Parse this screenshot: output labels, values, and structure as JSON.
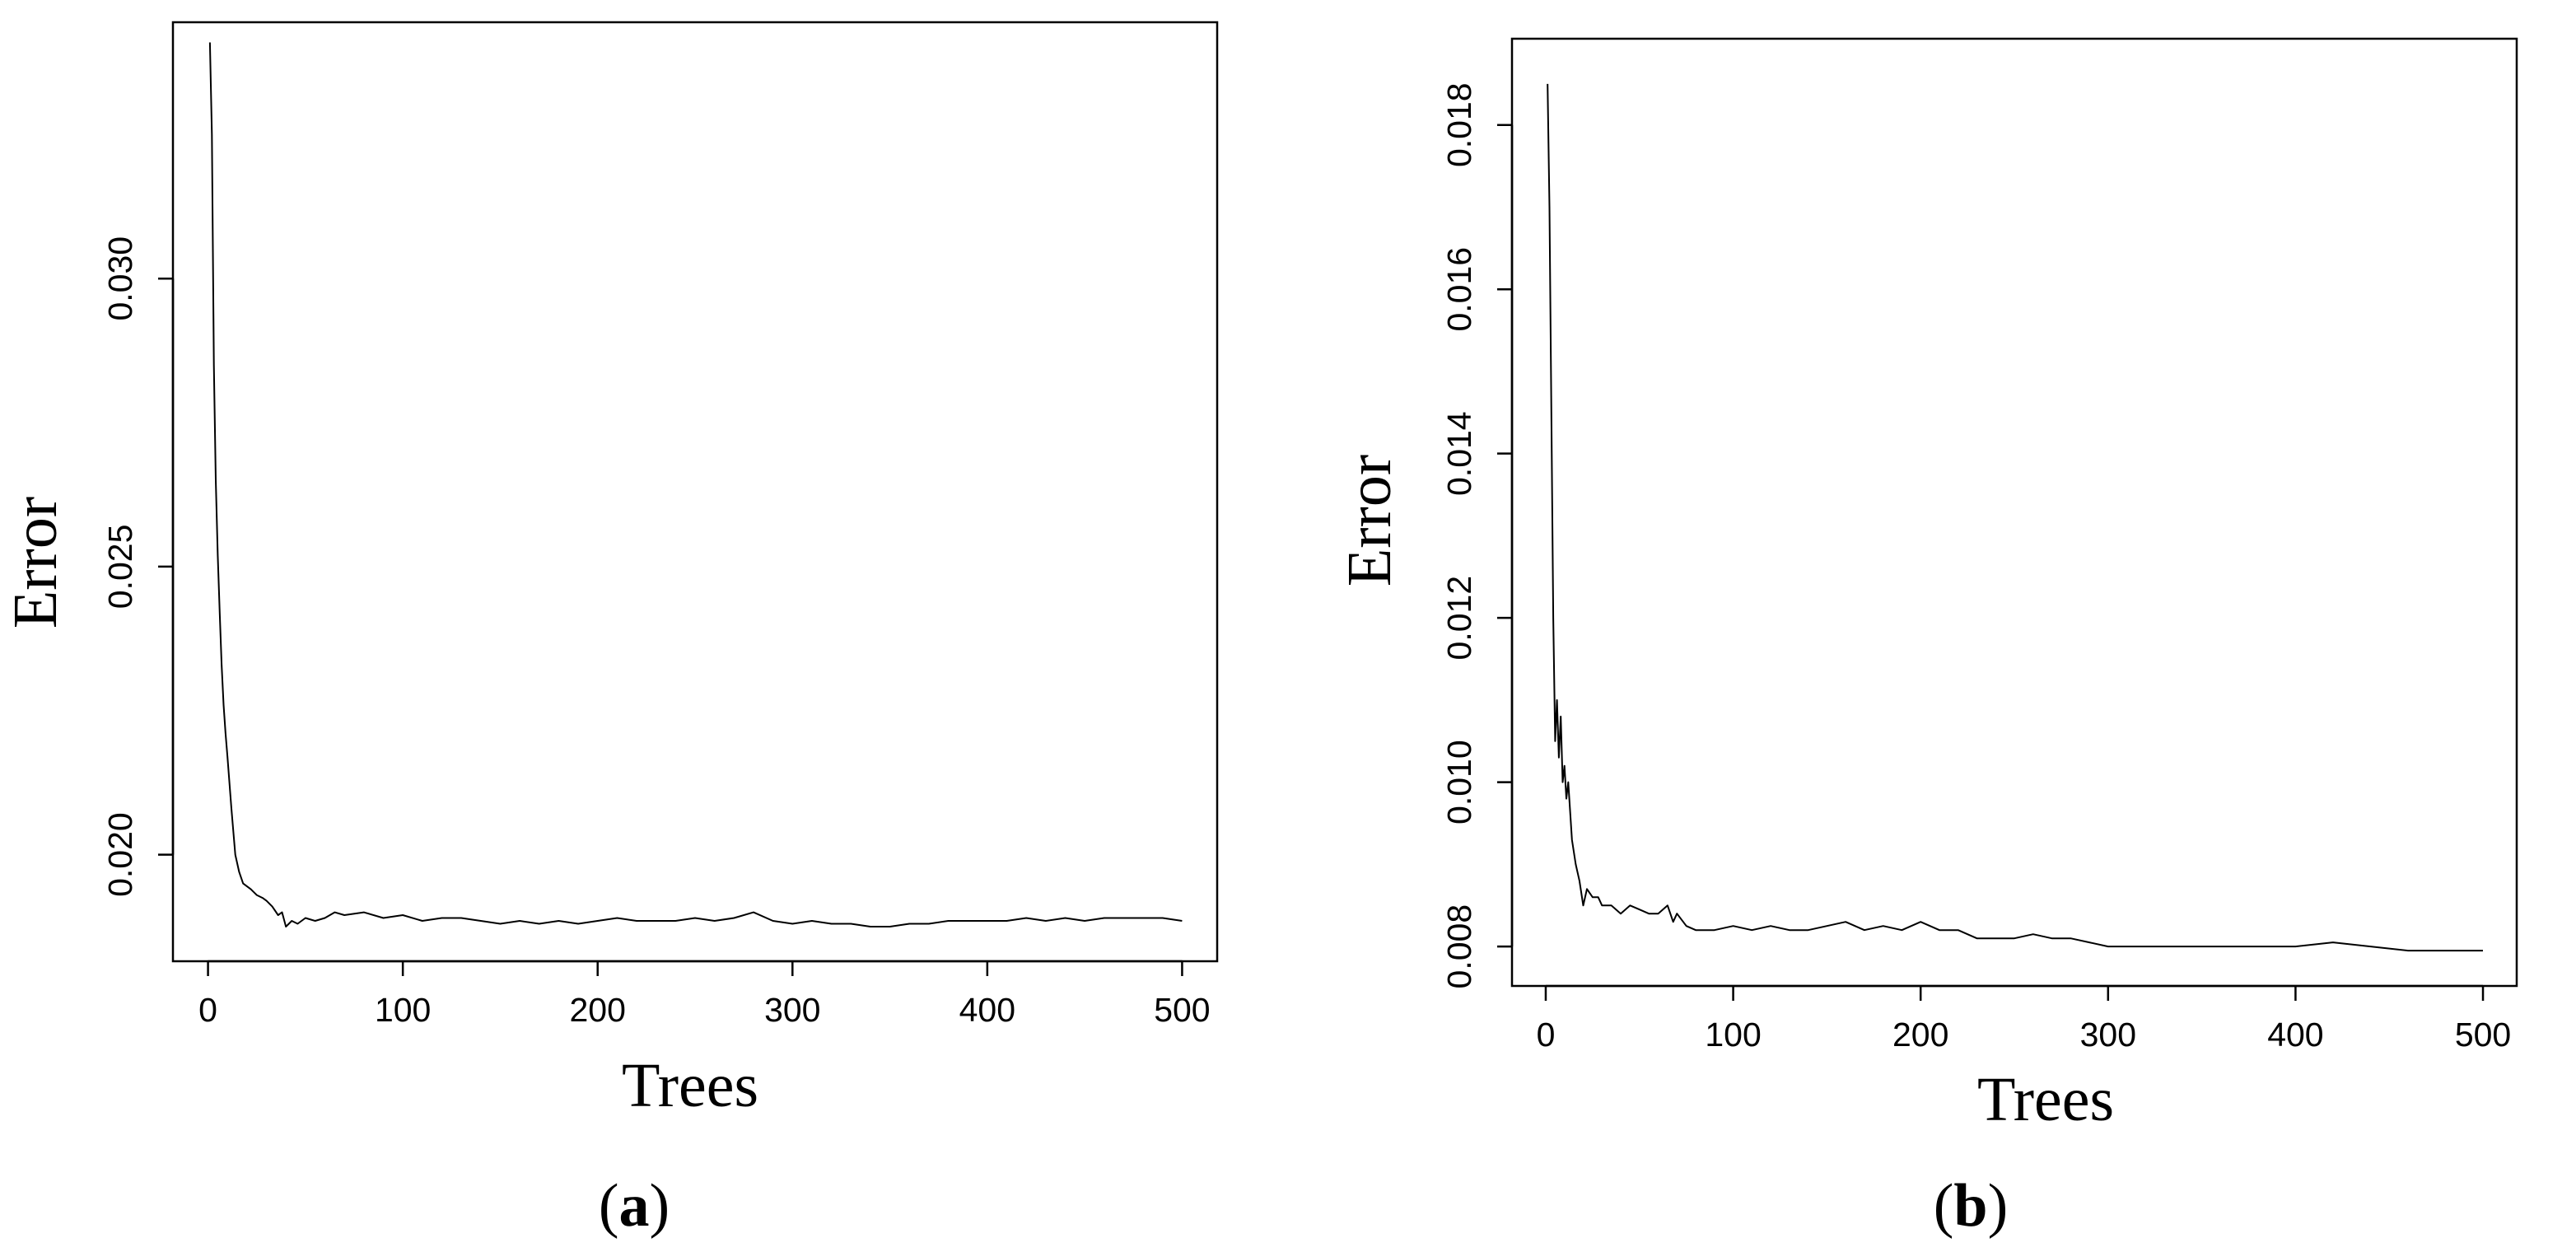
{
  "chart_data": [
    {
      "type": "line",
      "panel_label": "a",
      "xlabel": "Trees",
      "ylabel": "Error",
      "xlim": [
        -18,
        518
      ],
      "ylim": [
        0.01815,
        0.03445
      ],
      "xticks": [
        0,
        100,
        200,
        300,
        400,
        500
      ],
      "xtick_labels": [
        "0",
        "100",
        "200",
        "300",
        "400",
        "500"
      ],
      "yticks": [
        0.02,
        0.025,
        0.03
      ],
      "ytick_labels": [
        "0.020",
        "0.025",
        "0.030"
      ],
      "grid": false,
      "series": [
        {
          "x": [
            1,
            2,
            3,
            4,
            5,
            6,
            7,
            8,
            9,
            10,
            12,
            14,
            16,
            18,
            20,
            22,
            25,
            28,
            30,
            33,
            36,
            38,
            40,
            43,
            46,
            50,
            55,
            60,
            65,
            70,
            80,
            90,
            100,
            110,
            120,
            130,
            140,
            150,
            160,
            170,
            180,
            190,
            200,
            210,
            220,
            230,
            240,
            250,
            260,
            270,
            280,
            290,
            300,
            310,
            320,
            330,
            340,
            350,
            360,
            370,
            380,
            390,
            400,
            410,
            420,
            430,
            440,
            450,
            460,
            470,
            480,
            490,
            500
          ],
          "y": [
            0.0341,
            0.0325,
            0.0285,
            0.0265,
            0.0252,
            0.0242,
            0.0233,
            0.0226,
            0.0221,
            0.0217,
            0.0208,
            0.02,
            0.0197,
            0.0195,
            0.01945,
            0.0194,
            0.0193,
            0.01925,
            0.0192,
            0.0191,
            0.01895,
            0.019,
            0.01875,
            0.01885,
            0.0188,
            0.0189,
            0.01885,
            0.0189,
            0.019,
            0.01895,
            0.019,
            0.0189,
            0.01895,
            0.01885,
            0.0189,
            0.0189,
            0.01885,
            0.0188,
            0.01885,
            0.0188,
            0.01885,
            0.0188,
            0.01885,
            0.0189,
            0.01885,
            0.01885,
            0.01885,
            0.0189,
            0.01885,
            0.0189,
            0.019,
            0.01885,
            0.0188,
            0.01885,
            0.0188,
            0.0188,
            0.01875,
            0.01875,
            0.0188,
            0.0188,
            0.01885,
            0.01885,
            0.01885,
            0.01885,
            0.0189,
            0.01885,
            0.0189,
            0.01885,
            0.0189,
            0.0189,
            0.0189,
            0.0189,
            0.01885
          ]
        }
      ]
    },
    {
      "type": "line",
      "panel_label": "b",
      "xlabel": "Trees",
      "ylabel": "Error",
      "xlim": [
        -18,
        518
      ],
      "ylim": [
        0.00752,
        0.01905
      ],
      "xticks": [
        0,
        100,
        200,
        300,
        400,
        500
      ],
      "xtick_labels": [
        "0",
        "100",
        "200",
        "300",
        "400",
        "500"
      ],
      "yticks": [
        0.008,
        0.01,
        0.012,
        0.014,
        0.016,
        0.018
      ],
      "ytick_labels": [
        "0.008",
        "0.010",
        "0.012",
        "0.014",
        "0.016",
        "0.018"
      ],
      "grid": false,
      "series": [
        {
          "x": [
            1,
            2,
            3,
            4,
            5,
            6,
            7,
            8,
            9,
            10,
            11,
            12,
            14,
            16,
            18,
            20,
            22,
            25,
            28,
            30,
            35,
            40,
            45,
            50,
            55,
            60,
            65,
            68,
            70,
            75,
            80,
            90,
            100,
            110,
            120,
            130,
            140,
            150,
            160,
            170,
            180,
            190,
            200,
            210,
            220,
            230,
            240,
            250,
            260,
            270,
            280,
            290,
            300,
            320,
            340,
            360,
            380,
            400,
            420,
            440,
            460,
            480,
            500
          ],
          "y": [
            0.0185,
            0.017,
            0.0145,
            0.012,
            0.0105,
            0.011,
            0.0103,
            0.0108,
            0.01,
            0.0102,
            0.0098,
            0.01,
            0.0093,
            0.009,
            0.0088,
            0.0085,
            0.0087,
            0.0086,
            0.0086,
            0.0085,
            0.0085,
            0.0084,
            0.0085,
            0.00845,
            0.0084,
            0.0084,
            0.0085,
            0.0083,
            0.0084,
            0.00825,
            0.0082,
            0.0082,
            0.00825,
            0.0082,
            0.00825,
            0.0082,
            0.0082,
            0.00825,
            0.0083,
            0.0082,
            0.00825,
            0.0082,
            0.0083,
            0.0082,
            0.0082,
            0.0081,
            0.0081,
            0.0081,
            0.00815,
            0.0081,
            0.0081,
            0.00805,
            0.008,
            0.008,
            0.008,
            0.008,
            0.008,
            0.008,
            0.00805,
            0.008,
            0.00795,
            0.00795,
            0.00795
          ]
        }
      ]
    }
  ]
}
